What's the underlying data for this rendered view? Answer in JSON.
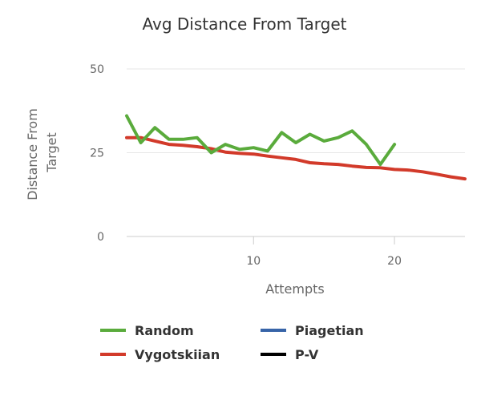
{
  "chart_data": {
    "type": "line",
    "title": "Avg Distance From Target",
    "xlabel": "Attempts",
    "ylabel": "Distance From Target",
    "xlim": [
      1,
      25
    ],
    "ylim": [
      0,
      50
    ],
    "x_ticks": [
      10,
      20
    ],
    "y_ticks": [
      0,
      25,
      50
    ],
    "grid": "horizontal",
    "legend_position": "bottom",
    "series": [
      {
        "name": "Random",
        "color": "#5aab3c",
        "x": [
          1,
          2,
          3,
          4,
          5,
          6,
          7,
          8,
          9,
          10,
          11,
          12,
          13,
          14,
          15,
          16,
          17,
          18,
          19,
          20
        ],
        "y": [
          36,
          28,
          32.5,
          29,
          29,
          29.5,
          25,
          27.5,
          26,
          26.5,
          25.5,
          31,
          28,
          30.5,
          28.5,
          29.5,
          31.5,
          27.5,
          21.5,
          27.5
        ]
      },
      {
        "name": "Vygotskiian",
        "color": "#d23a2a",
        "x": [
          1,
          2,
          3,
          4,
          5,
          6,
          7,
          8,
          9,
          10,
          11,
          12,
          13,
          14,
          15,
          16,
          17,
          18,
          19,
          20,
          21,
          22,
          23,
          24,
          25
        ],
        "y": [
          29.5,
          29.5,
          28.5,
          27.5,
          27.2,
          26.8,
          26.2,
          25.2,
          24.8,
          24.6,
          24,
          23.5,
          23,
          22,
          21.7,
          21.5,
          21,
          20.6,
          20.5,
          20,
          19.8,
          19.3,
          18.6,
          17.8,
          17.2
        ]
      },
      {
        "name": "Piagetian",
        "color": "#3764a8",
        "x": [],
        "y": []
      },
      {
        "name": "P-V",
        "color": "#000000",
        "x": [],
        "y": []
      }
    ]
  }
}
